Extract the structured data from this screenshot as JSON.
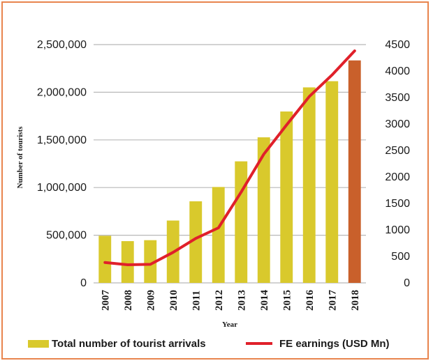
{
  "chart_data": {
    "type": "bar",
    "categories": [
      "2007",
      "2008",
      "2009",
      "2010",
      "2011",
      "2012",
      "2013",
      "2014",
      "2015",
      "2016",
      "2017",
      "2018"
    ],
    "series": [
      {
        "name": "Total number of tourist arrivals",
        "kind": "bar",
        "axis": "left",
        "color": "#d9c92c",
        "highlight_color": "#c9602b",
        "highlight_index": 11,
        "values": [
          494000,
          438000,
          448000,
          654000,
          856000,
          1006000,
          1275000,
          1527000,
          1798000,
          2051000,
          2116000,
          2334000
        ]
      },
      {
        "name": "FE earnings (USD Mn)",
        "kind": "line",
        "axis": "right",
        "color": "#e0202a",
        "values": [
          385,
          342,
          350,
          576,
          839,
          1039,
          1715,
          2431,
          2981,
          3518,
          3925,
          4381
        ]
      }
    ],
    "xlabel": "Year",
    "ylabel": "Number of tourists",
    "ylim": [
      0,
      2500000
    ],
    "y2lim": [
      0,
      4500
    ],
    "yticks": [
      "0",
      "500,000",
      "1,000,000",
      "1,500,000",
      "2,000,000",
      "2,500,000"
    ],
    "y2ticks": [
      "0",
      "500",
      "1000",
      "1500",
      "2000",
      "2500",
      "3000",
      "3500",
      "4000",
      "4500"
    ],
    "grid": true,
    "legend": "bottom"
  }
}
